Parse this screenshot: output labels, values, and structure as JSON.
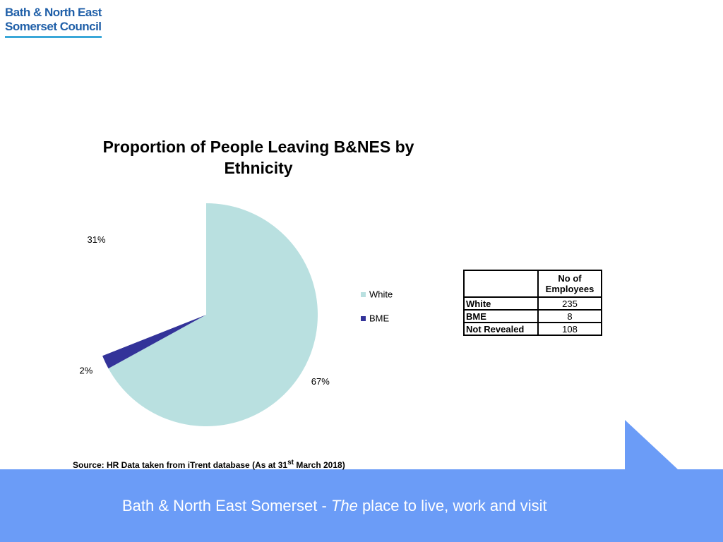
{
  "logo": {
    "line1": "Bath & North East",
    "line2": "Somerset Council"
  },
  "chart_data": {
    "type": "pie",
    "title": "Proportion of People Leaving B&NES by Ethnicity",
    "categories": [
      "White",
      "BME",
      null
    ],
    "values": [
      67,
      2,
      31
    ],
    "value_labels": [
      "67%",
      "2%",
      "31%"
    ],
    "colors": [
      "#b9e0e0",
      "#333399",
      "#ffffff"
    ],
    "legend": "right"
  },
  "table": {
    "header": "No of Employees",
    "rows": [
      [
        "White",
        235
      ],
      [
        "BME",
        8
      ],
      [
        "Not Revealed",
        108
      ]
    ]
  },
  "source": {
    "prefix": "Source: HR Data taken from iTrent database (As at 31",
    "sup": "st",
    "suffix": " March 2018)"
  },
  "footer": {
    "lead": "Bath & North East Somerset - ",
    "emph": "The",
    "tail": " place to live, work and visit"
  }
}
